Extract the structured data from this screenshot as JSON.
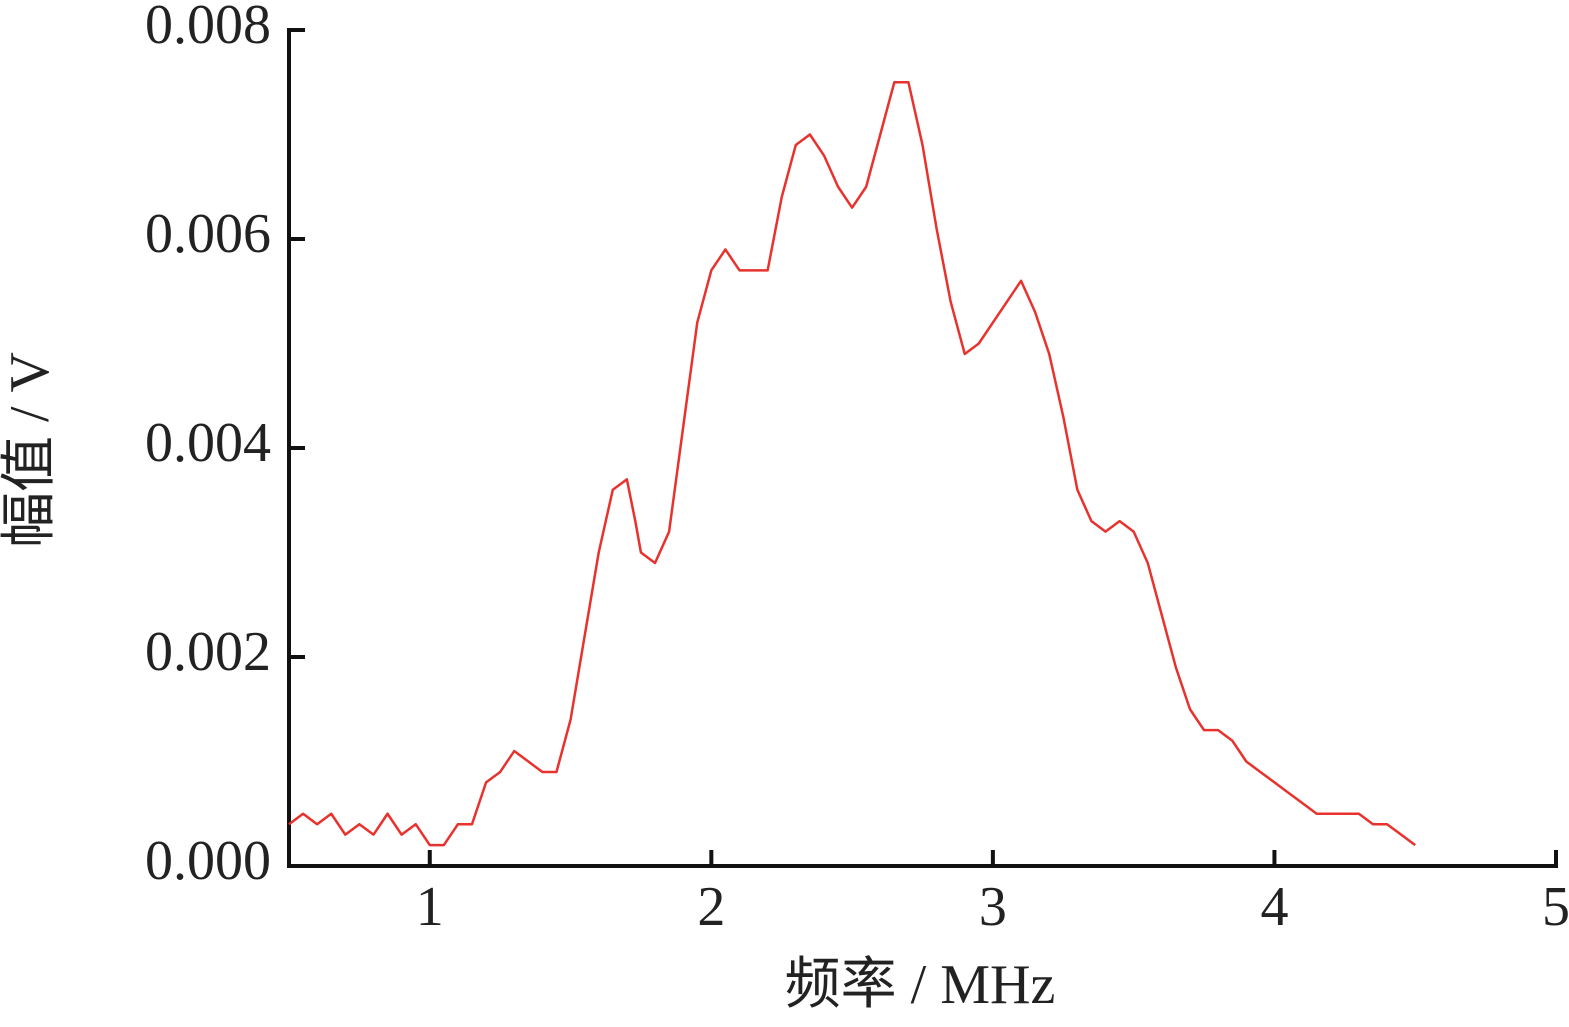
{
  "chart_data": {
    "type": "line",
    "xlabel": "频率 / MHz",
    "ylabel": "幅值 / V",
    "x": [
      0.5,
      0.55,
      0.6,
      0.65,
      0.7,
      0.75,
      0.8,
      0.85,
      0.9,
      0.95,
      1.0,
      1.05,
      1.1,
      1.15,
      1.2,
      1.25,
      1.3,
      1.35,
      1.4,
      1.45,
      1.5,
      1.55,
      1.6,
      1.65,
      1.7,
      1.73,
      1.75,
      1.8,
      1.85,
      1.9,
      1.95,
      2.0,
      2.05,
      2.1,
      2.15,
      2.2,
      2.25,
      2.3,
      2.35,
      2.4,
      2.45,
      2.5,
      2.55,
      2.6,
      2.65,
      2.7,
      2.75,
      2.8,
      2.85,
      2.9,
      2.95,
      3.0,
      3.05,
      3.1,
      3.15,
      3.2,
      3.25,
      3.3,
      3.35,
      3.4,
      3.45,
      3.5,
      3.55,
      3.6,
      3.65,
      3.7,
      3.75,
      3.8,
      3.85,
      3.9,
      3.95,
      4.0,
      4.05,
      4.1,
      4.15,
      4.2,
      4.25,
      4.3,
      4.35,
      4.4,
      4.45,
      4.5
    ],
    "series": [
      {
        "color": "#e8322d",
        "values": [
          0.0004,
          0.0005,
          0.0004,
          0.0005,
          0.0003,
          0.0004,
          0.0003,
          0.0005,
          0.0003,
          0.0004,
          0.0002,
          0.0002,
          0.0004,
          0.0004,
          0.0008,
          0.0009,
          0.0011,
          0.001,
          0.0009,
          0.0009,
          0.0014,
          0.0022,
          0.003,
          0.0036,
          0.0037,
          0.0033,
          0.003,
          0.0029,
          0.0032,
          0.0042,
          0.0052,
          0.0057,
          0.0059,
          0.0057,
          0.0057,
          0.0057,
          0.0064,
          0.0069,
          0.007,
          0.0068,
          0.0065,
          0.0063,
          0.0065,
          0.007,
          0.0075,
          0.0075,
          0.0069,
          0.0061,
          0.0054,
          0.0049,
          0.005,
          0.0052,
          0.0054,
          0.0056,
          0.0053,
          0.0049,
          0.0043,
          0.0036,
          0.0033,
          0.0032,
          0.0033,
          0.0032,
          0.0029,
          0.0024,
          0.0019,
          0.0015,
          0.0013,
          0.0013,
          0.0012,
          0.001,
          0.0009,
          0.0008,
          0.0007,
          0.0006,
          0.0005,
          0.0005,
          0.0005,
          0.0005,
          0.0004,
          0.0004,
          0.0003,
          0.0002
        ]
      }
    ],
    "xlim": [
      0.5,
      5
    ],
    "xticks": [
      1,
      2,
      3,
      4,
      5
    ],
    "ylim": [
      0,
      0.008
    ],
    "yticks": [
      {
        "value": 0,
        "label": "0.000"
      },
      {
        "value": 0.002,
        "label": "0.002"
      },
      {
        "value": 0.004,
        "label": "0.004"
      },
      {
        "value": 0.006,
        "label": "0.006"
      },
      {
        "value": 0.008,
        "label": "0.008"
      }
    ]
  }
}
